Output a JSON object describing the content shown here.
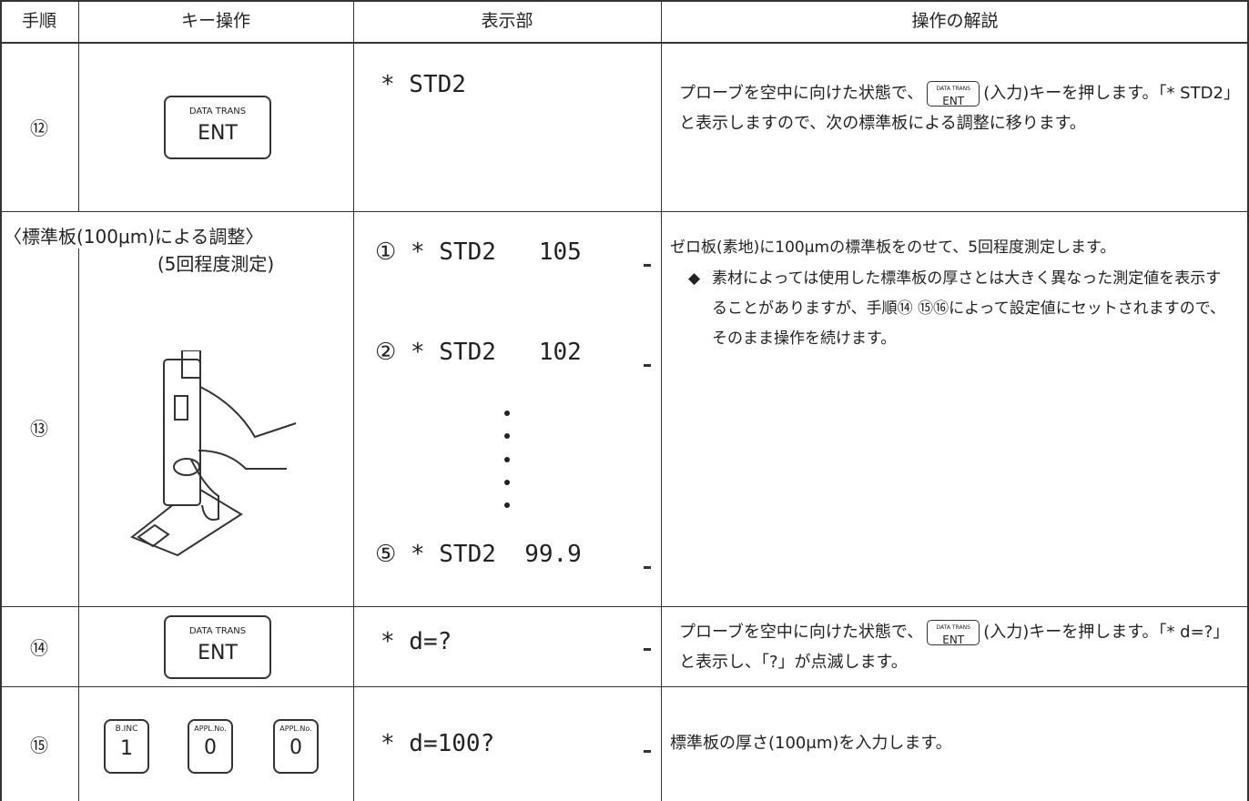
{
  "table": {
    "header": [
      "手順",
      "キー操作",
      "表示部",
      "操作の解説"
    ],
    "rows": [
      {
        "step": "⑫",
        "keys": [
          {
            "top": "DATA TRANS",
            "main": "ENT"
          }
        ],
        "display": [
          {
            "text": "* STD2"
          }
        ],
        "explanation": {
          "before": "プローブを空中に向けた状態で、",
          "key": {
            "top": "DATA TRANS",
            "main": "ENT"
          },
          "after": "(入力)キーを押します。「* STD2」と表示しますので、次の標準板による調整に移ります。"
        }
      },
      {
        "step": "⑬",
        "section_title": "〈標準板(100μm)による調整〉",
        "section_subtitle": "(5回程度測定)",
        "display": [
          {
            "num": "①",
            "text": "* STD2",
            "value": "105"
          },
          {
            "num": "②",
            "text": "* STD2",
            "value": "102"
          },
          {
            "num": "⑤",
            "text": "* STD2",
            "value": "99.9"
          }
        ],
        "explanation": {
          "main": "ゼロ板(素地)に100μmの標準板をのせて、5回程度測定します。",
          "note_mark": "◆",
          "note": "素材によっては使用した標準板の厚さとは大きく異なった測定値を表示することがありますが、手順⑭ ⑮⑯によって設定値にセットされますので、そのまま操作を続けます。"
        }
      },
      {
        "step": "⑭",
        "keys": [
          {
            "top": "DATA TRANS",
            "main": "ENT"
          }
        ],
        "display": [
          {
            "text": "* d=?"
          }
        ],
        "explanation": {
          "before": "プローブを空中に向けた状態で、",
          "key": {
            "top": "DATA TRANS",
            "main": "ENT"
          },
          "after": "(入力)キーを押します。「* d=?」と表示し、「?」が点滅します。"
        }
      },
      {
        "step": "⑮",
        "keys": [
          {
            "top": "B.INC",
            "main": "1"
          },
          {
            "top": "APPL.No.",
            "main": "0"
          },
          {
            "top": "APPL.No.",
            "main": "0"
          }
        ],
        "display": [
          {
            "text": "* d=100?"
          }
        ],
        "explanation": {
          "main": "標準板の厚さ(100μm)を入力します。"
        }
      }
    ]
  }
}
